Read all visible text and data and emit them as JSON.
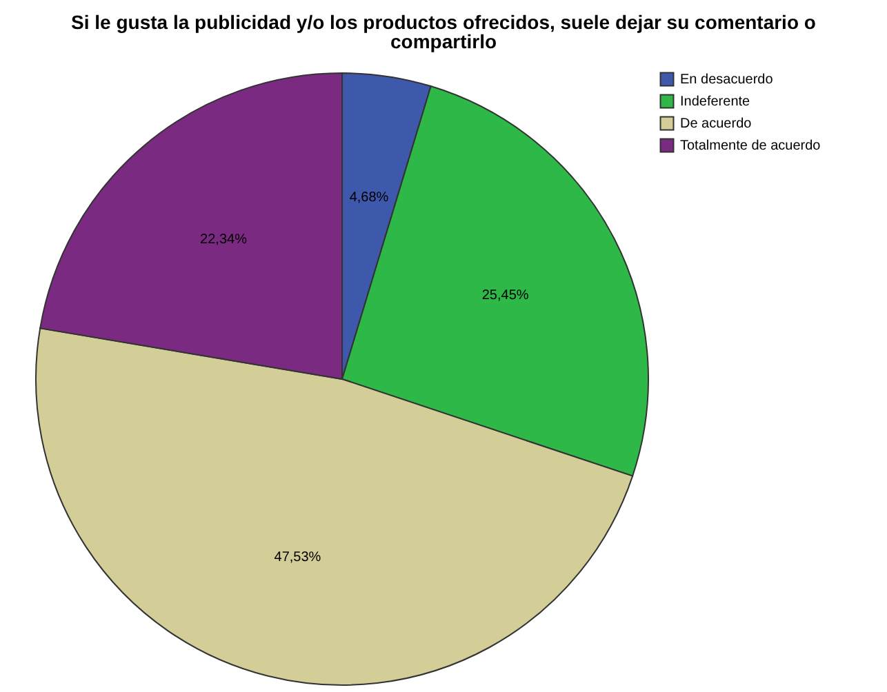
{
  "chart_data": {
    "type": "pie",
    "title": "Si le gusta la publicidad y/o los productos ofrecidos, suele dejar su comentario o compartirlo",
    "categories": [
      "En desacuerdo",
      "Indeferente",
      "De acuerdo",
      "Totalmente de acuerdo"
    ],
    "values": [
      4.68,
      25.45,
      47.53,
      22.34
    ],
    "colors": [
      "#3e58ac",
      "#2eb848",
      "#d3ce97",
      "#7b2a82"
    ],
    "value_labels": [
      "4,68%",
      "25,45%",
      "47,53%",
      "22,34%"
    ],
    "legend": "top right"
  }
}
